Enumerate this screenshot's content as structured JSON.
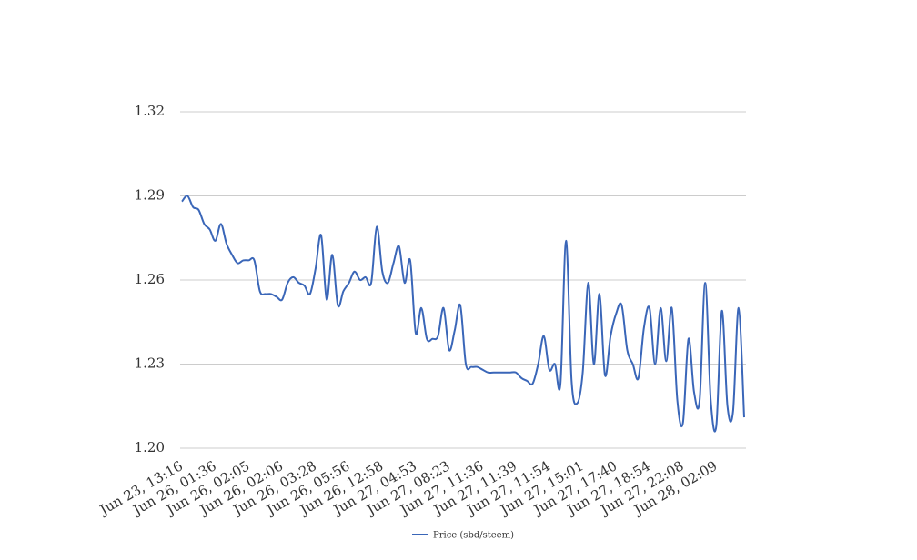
{
  "chart_data": {
    "type": "line",
    "categories": [
      "Jun 23, 13:16",
      null,
      null,
      null,
      null,
      null,
      "Jun 26, 01:36",
      null,
      null,
      null,
      null,
      null,
      "Jun 26, 02:05",
      null,
      null,
      null,
      null,
      null,
      "Jun 26, 02:06",
      null,
      null,
      null,
      null,
      null,
      "Jun 26, 03:28",
      null,
      null,
      null,
      null,
      null,
      "Jun 26, 05:56",
      null,
      null,
      null,
      null,
      null,
      "Jun 26, 12:58",
      null,
      null,
      null,
      null,
      null,
      "Jun 27, 04:53",
      null,
      null,
      null,
      null,
      null,
      "Jun 27, 08:23",
      null,
      null,
      null,
      null,
      null,
      "Jun 27, 11:36",
      null,
      null,
      null,
      null,
      null,
      "Jun 27, 11:39",
      null,
      null,
      null,
      null,
      null,
      "Jun 27, 11:54",
      null,
      null,
      null,
      null,
      null,
      "Jun 27, 15:01",
      null,
      null,
      null,
      null,
      null,
      "Jun 27, 17:40",
      null,
      null,
      null,
      null,
      null,
      "Jun 27, 18:54",
      null,
      null,
      null,
      null,
      null,
      "Jun 27, 22:08",
      null,
      null,
      null,
      null,
      null,
      "Jun 28, 02:09",
      null,
      null,
      null,
      null,
      null
    ],
    "series": [
      {
        "name": "Price (sbd/steem)",
        "color": "#3a66b8",
        "values": [
          1.288,
          1.29,
          1.286,
          1.285,
          1.28,
          1.278,
          1.274,
          1.28,
          1.273,
          1.269,
          1.266,
          1.267,
          1.267,
          1.267,
          1.256,
          1.255,
          1.255,
          1.254,
          1.253,
          1.259,
          1.261,
          1.259,
          1.258,
          1.255,
          1.264,
          1.276,
          1.253,
          1.269,
          1.251,
          1.256,
          1.259,
          1.263,
          1.26,
          1.261,
          1.259,
          1.279,
          1.263,
          1.259,
          1.266,
          1.272,
          1.259,
          1.267,
          1.241,
          1.25,
          1.239,
          1.239,
          1.24,
          1.25,
          1.235,
          1.242,
          1.251,
          1.23,
          1.229,
          1.229,
          1.228,
          1.227,
          1.227,
          1.227,
          1.227,
          1.227,
          1.227,
          1.225,
          1.224,
          1.223,
          1.23,
          1.24,
          1.228,
          1.23,
          1.223,
          1.274,
          1.224,
          1.216,
          1.227,
          1.259,
          1.23,
          1.255,
          1.226,
          1.24,
          1.248,
          1.251,
          1.235,
          1.23,
          1.225,
          1.243,
          1.25,
          1.23,
          1.25,
          1.231,
          1.25,
          1.217,
          1.209,
          1.239,
          1.22,
          1.217,
          1.259,
          1.217,
          1.208,
          1.249,
          1.215,
          1.213,
          1.25,
          1.211
        ]
      }
    ],
    "ylim": [
      1.2,
      1.32
    ],
    "yticks": [
      {
        "value": 1.2,
        "label": "1.20"
      },
      1.23,
      1.26,
      1.29,
      1.32
    ],
    "grid": true,
    "legend": "bottom"
  }
}
